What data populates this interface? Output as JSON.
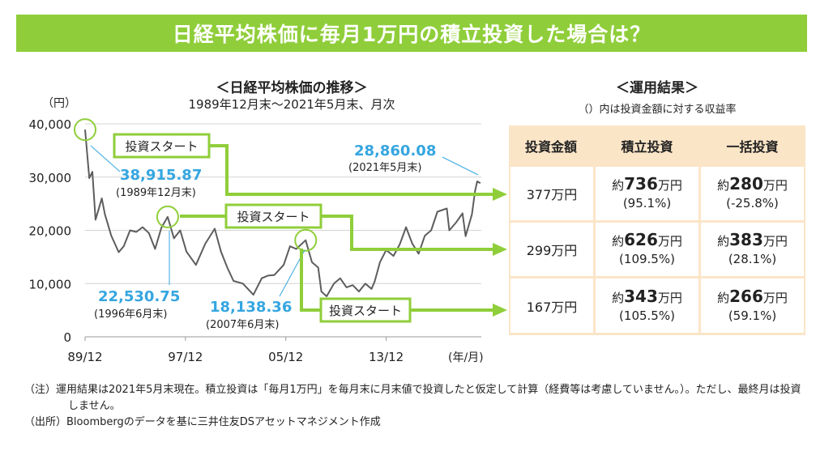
{
  "banner": {
    "title": "日経平均株価に毎月1万円の積立投資した場合は？"
  },
  "chart": {
    "title": "＜日経平均株価の推移＞",
    "subtitle": "1989年12月末～2021年5月末、月次",
    "y_unit": "（円）",
    "x_unit": "(年/月)",
    "start_label": "投資スタート",
    "annotations": [
      {
        "value": "38,915.87",
        "date": "(1989年12月末)"
      },
      {
        "value": "22,530.75",
        "date": "(1996年6月末)"
      },
      {
        "value": "18,138.36",
        "date": "(2007年6月末)"
      },
      {
        "value": "28,860.08",
        "date": "(2021年5月末)"
      }
    ]
  },
  "chart_data": {
    "type": "line",
    "title": "＜日経平均株価の推移＞",
    "subtitle": "1989年12月末～2021年5月末、月次",
    "ylabel": "（円）",
    "xlabel": "(年/月)",
    "ylim": [
      0,
      40000
    ],
    "yticks": [
      0,
      10000,
      20000,
      30000,
      40000
    ],
    "ytick_labels": [
      "0",
      "10,000",
      "20,000",
      "30,000",
      "40,000"
    ],
    "xticks": [
      1989.917,
      1997.917,
      2005.917,
      2013.917
    ],
    "xtick_labels": [
      "89/12",
      "97/12",
      "05/12",
      "13/12"
    ],
    "xlim": [
      1989.917,
      2021.5
    ],
    "series": [
      {
        "name": "日経平均株価",
        "x": [
          1989.917,
          1990.25,
          1990.5,
          1990.75,
          1991.0,
          1991.25,
          1991.5,
          1992.0,
          1992.6,
          1993.0,
          1993.5,
          1994.0,
          1994.5,
          1995.0,
          1995.5,
          1996.0,
          1996.5,
          1997.0,
          1997.5,
          1998.0,
          1998.75,
          1999.5,
          2000.25,
          2000.75,
          2001.25,
          2001.75,
          2002.5,
          2003.33,
          2004.0,
          2004.5,
          2005.0,
          2005.75,
          2006.25,
          2006.75,
          2007.5,
          2008.0,
          2008.5,
          2008.75,
          2009.17,
          2009.75,
          2010.25,
          2010.75,
          2011.25,
          2011.75,
          2012.25,
          2012.75,
          2013.0,
          2013.42,
          2013.92,
          2014.5,
          2015.0,
          2015.5,
          2016.0,
          2016.5,
          2017.0,
          2017.5,
          2018.0,
          2018.75,
          2018.95,
          2019.5,
          2020.0,
          2020.25,
          2020.75,
          2021.0,
          2021.17,
          2021.42
        ],
        "values": [
          38915,
          29800,
          31000,
          22000,
          24000,
          26000,
          23000,
          19000,
          15900,
          17000,
          20000,
          19700,
          20600,
          19500,
          16500,
          20500,
          22531,
          18500,
          20000,
          16000,
          13500,
          17500,
          20300,
          16000,
          13000,
          10500,
          10000,
          7900,
          11000,
          11500,
          11600,
          13500,
          17000,
          16500,
          18138,
          14000,
          13000,
          8500,
          7600,
          10000,
          11000,
          9300,
          9700,
          8500,
          10000,
          9000,
          10400,
          14000,
          16300,
          15200,
          17400,
          20600,
          17500,
          15600,
          19000,
          20000,
          23500,
          24100,
          20000,
          21500,
          23200,
          18900,
          23000,
          27400,
          29200,
          28860
        ]
      }
    ],
    "annotations": [
      {
        "label": "38,915.87",
        "sub": "(1989年12月末)",
        "x": 1989.917,
        "y": 38915.87
      },
      {
        "label": "22,530.75",
        "sub": "(1996年6月末)",
        "x": 1996.5,
        "y": 22530.75
      },
      {
        "label": "18,138.36",
        "sub": "(2007年6月末)",
        "x": 2007.5,
        "y": 18138.36
      },
      {
        "label": "28,860.08",
        "sub": "(2021年5月末)",
        "x": 2021.42,
        "y": 28860.08
      }
    ]
  },
  "results": {
    "title": "＜運用結果＞",
    "subtitle": "（）内は投資金額に対する収益率",
    "headers": [
      "投資金額",
      "積立投資",
      "一括投資"
    ],
    "prefix": "約",
    "unit": "万円",
    "rows": [
      {
        "amount": "377万円",
        "tsumitate": "736",
        "tsumitate_rate": "(95.1%)",
        "ikkatsu": "280",
        "ikkatsu_rate": "(-25.8%)"
      },
      {
        "amount": "299万円",
        "tsumitate": "626",
        "tsumitate_rate": "(109.5%)",
        "ikkatsu": "383",
        "ikkatsu_rate": "(28.1%)"
      },
      {
        "amount": "167万円",
        "tsumitate": "343",
        "tsumitate_rate": "(105.5%)",
        "ikkatsu": "266",
        "ikkatsu_rate": "(59.1%)"
      }
    ]
  },
  "notes": {
    "note1": "（注）運用結果は2021年5月末現在。積立投資は「毎月1万円」を毎月末に月末値で投資したと仮定して計算（経費等は考慮していません。）。ただし、最終月は投資しません。",
    "source": "（出所）Bloombergのデータを基に三井住友DSアセットマネジメント作成"
  },
  "colors": {
    "banner": "#8fce3a",
    "arrow": "#8fce3a",
    "line": "#5d5d5d",
    "annotation": "#35a6e0",
    "table_bg": "#fbe5c7"
  }
}
